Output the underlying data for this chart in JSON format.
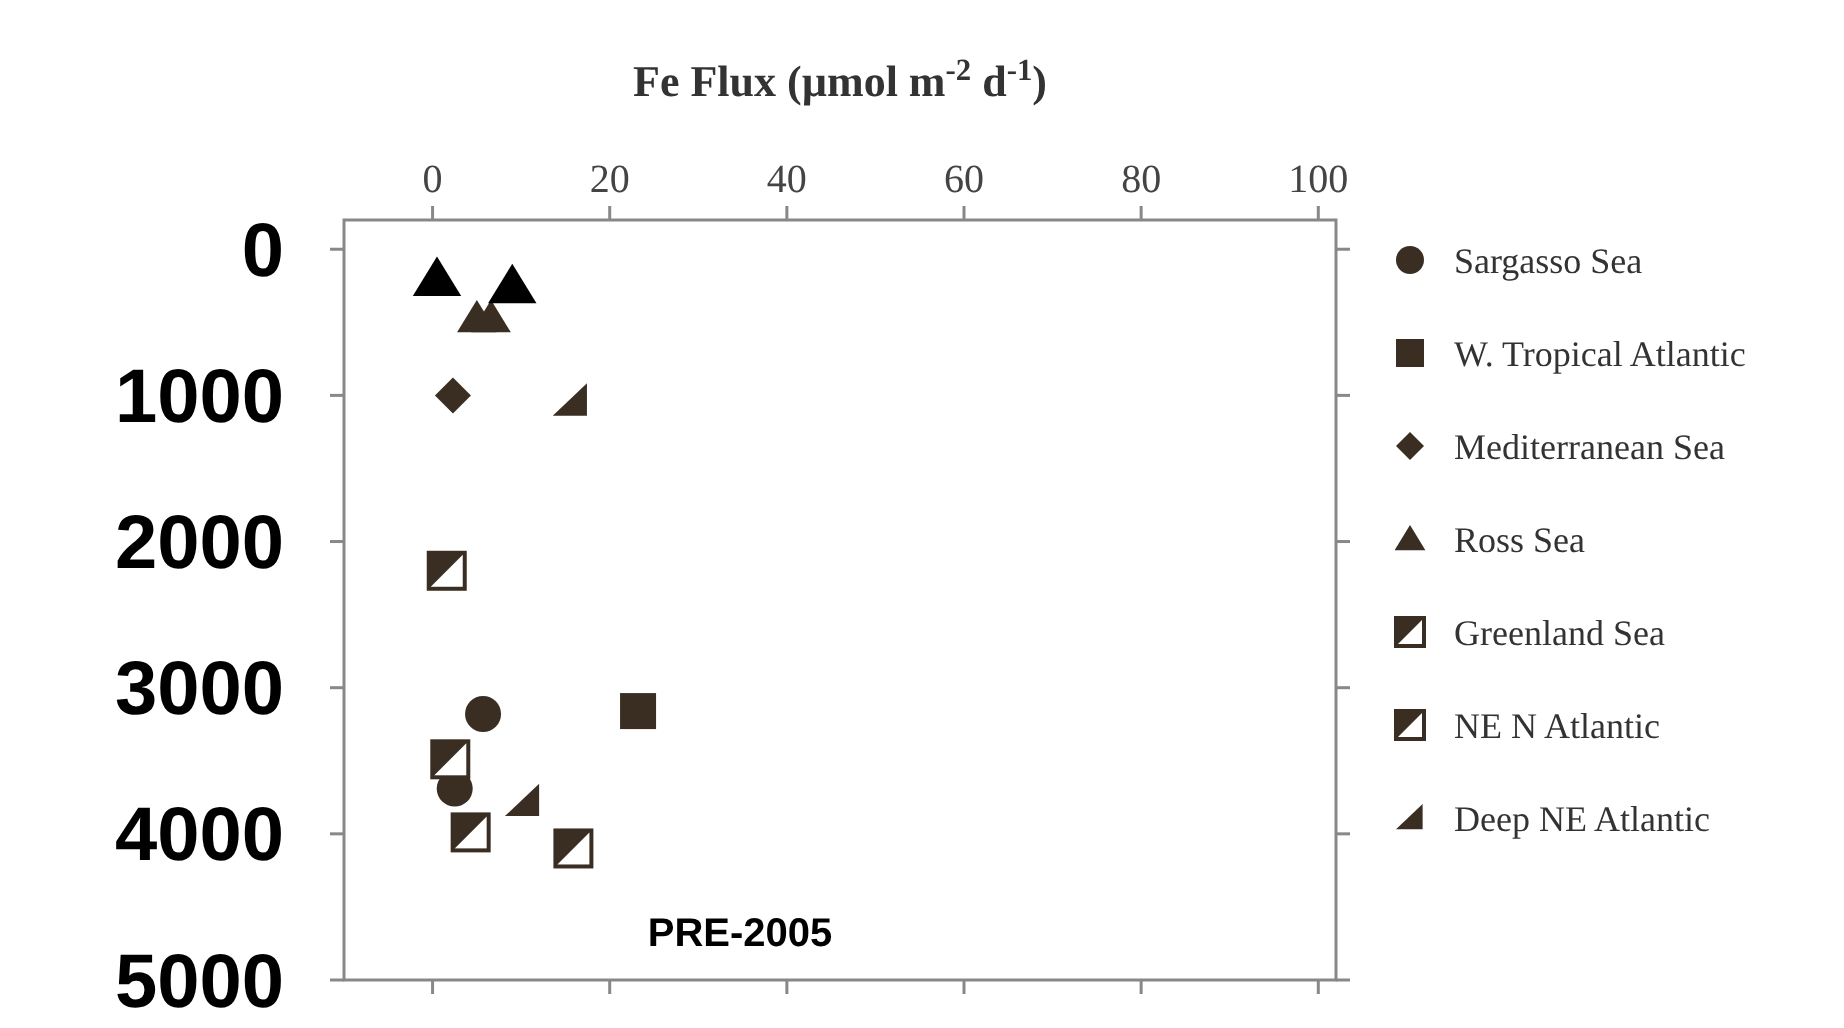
{
  "chart_data": {
    "type": "scatter",
    "xlabel": "Fe Flux (µmol m$^{-2}$ d$^{-1}$)",
    "xlim": [
      -10,
      102
    ],
    "xticks": [
      0,
      20,
      40,
      60,
      80,
      100
    ],
    "ylim": [
      5000,
      -200
    ],
    "yticks": [
      0,
      1000,
      2000,
      3000,
      4000,
      5000
    ],
    "legend": "right",
    "grid": false,
    "annotations": [
      "PRE-2005"
    ],
    "series": [
      {
        "name": "Sargasso Sea",
        "color": "#3a2e22",
        "marker": "circle",
        "x": [
          5.7,
          2.5
        ],
        "values": [
          3180,
          3690
        ]
      },
      {
        "name": "W. Tropical Atlantic",
        "color": "#3a2e22",
        "marker": "square",
        "x": [
          23.2
        ],
        "values": [
          3160
        ]
      },
      {
        "name": "Mediterranean Sea",
        "color": "#3a2e22",
        "marker": "diamond",
        "x": [
          2.3
        ],
        "values": [
          1000
        ]
      },
      {
        "name": "Ross Sea",
        "color": "#3a2e22",
        "marker": "triangle",
        "x": [
          5,
          6.6
        ],
        "values": [
          470,
          470
        ]
      },
      {
        "name": "Greenland Sea",
        "color": "#3a2e22",
        "marker": "square",
        "x": [
          1.6
        ],
        "values": [
          2200
        ]
      },
      {
        "name": "NE N Atlantic",
        "color": "#3a2e22",
        "marker": "square",
        "x": [
          2,
          4.3,
          15.9
        ],
        "values": [
          3490,
          3990,
          4100
        ]
      },
      {
        "name": "Deep NE Atlantic",
        "color": "#3a2e22",
        "marker": "triangle",
        "x": [
          15.6,
          10.2
        ],
        "values": [
          1040,
          3780
        ]
      },
      {
        "color": "#000000",
        "marker": "triangle",
        "x": [
          0.5,
          9
        ],
        "values": [
          200,
          250
        ]
      }
    ]
  }
}
